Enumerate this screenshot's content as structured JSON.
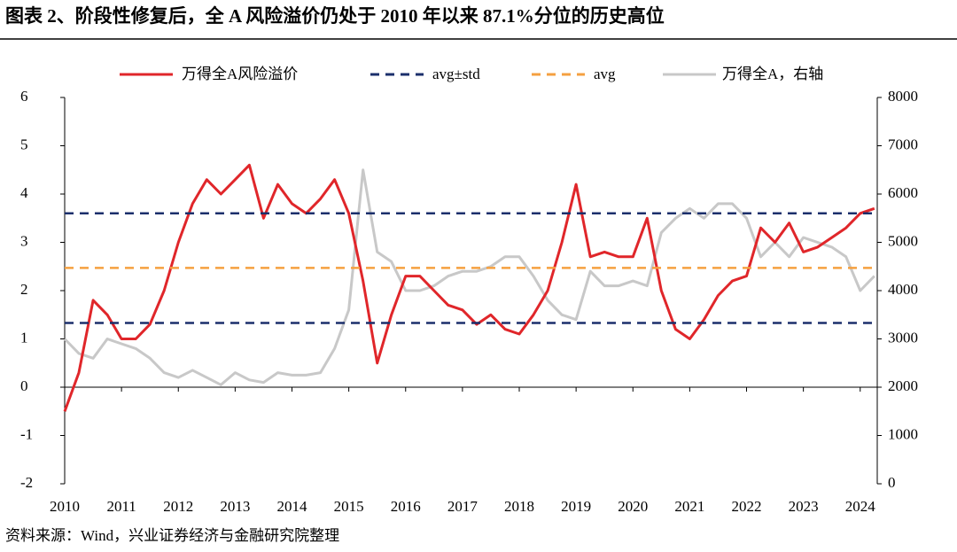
{
  "chart_data": {
    "type": "line",
    "title": "图表 2、阶段性修复后，全 A 风险溢价仍处于 2010 年以来 87.1%分位的历史高位",
    "source": "资料来源：Wind，兴业证券经济与金融研究院整理",
    "legend": "top",
    "x": [
      2010,
      2010.25,
      2010.5,
      2010.75,
      2011,
      2011.25,
      2011.5,
      2011.75,
      2012,
      2012.25,
      2012.5,
      2012.75,
      2013,
      2013.25,
      2013.5,
      2013.75,
      2014,
      2014.25,
      2014.5,
      2014.75,
      2015,
      2015.25,
      2015.5,
      2015.75,
      2016,
      2016.25,
      2016.5,
      2016.75,
      2017,
      2017.25,
      2017.5,
      2017.75,
      2018,
      2018.25,
      2018.5,
      2018.75,
      2019,
      2019.25,
      2019.5,
      2019.75,
      2020,
      2020.25,
      2020.5,
      2020.75,
      2021,
      2021.25,
      2021.5,
      2021.75,
      2022,
      2022.25,
      2022.5,
      2022.75,
      2023,
      2023.25,
      2023.5,
      2023.75,
      2024,
      2024.25
    ],
    "series": [
      {
        "name": "万得全A风险溢价",
        "color": "#e0262a",
        "axis": "y",
        "values": [
          -0.5,
          0.3,
          1.8,
          1.5,
          1.0,
          1.0,
          1.3,
          2.0,
          3.0,
          3.8,
          4.3,
          4.0,
          4.3,
          4.6,
          3.5,
          4.2,
          3.8,
          3.6,
          3.9,
          4.3,
          3.6,
          2.2,
          0.5,
          1.5,
          2.3,
          2.3,
          2.0,
          1.7,
          1.6,
          1.3,
          1.5,
          1.2,
          1.1,
          1.5,
          2.0,
          3.0,
          4.2,
          2.7,
          2.8,
          2.7,
          2.7,
          3.5,
          2.0,
          1.2,
          1.0,
          1.4,
          1.9,
          2.2,
          2.3,
          3.3,
          3.0,
          3.4,
          2.8,
          2.9,
          3.1,
          3.3,
          3.6,
          3.7
        ]
      },
      {
        "name": "万得全A，右轴",
        "color": "#c8c8c8",
        "axis": "y2",
        "values": [
          3000,
          2700,
          2600,
          3000,
          2900,
          2800,
          2600,
          2300,
          2200,
          2350,
          2200,
          2050,
          2300,
          2150,
          2100,
          2300,
          2250,
          2250,
          2300,
          2800,
          3600,
          6500,
          4800,
          4600,
          4000,
          4000,
          4100,
          4300,
          4400,
          4400,
          4500,
          4700,
          4700,
          4300,
          3800,
          3500,
          3400,
          4400,
          4100,
          4100,
          4200,
          4100,
          5200,
          5500,
          5700,
          5500,
          5800,
          5800,
          5500,
          4700,
          5000,
          4700,
          5100,
          5000,
          4900,
          4700,
          4000,
          4300
        ]
      }
    ],
    "hlines": [
      {
        "name": "avg±std",
        "color": "#1b2f6b",
        "values": [
          3.6,
          1.33
        ]
      },
      {
        "name": "avg",
        "color": "#f5a040",
        "values": [
          2.47
        ]
      }
    ],
    "xlim": [
      2010,
      2024.3
    ],
    "xticks": [
      2010,
      2011,
      2012,
      2013,
      2014,
      2015,
      2016,
      2017,
      2018,
      2019,
      2020,
      2021,
      2022,
      2023,
      2024
    ],
    "ylim": [
      -2,
      6
    ],
    "yticks": [
      -2,
      -1,
      0,
      1,
      2,
      3,
      4,
      5,
      6
    ],
    "y2lim": [
      0,
      8000
    ],
    "y2ticks": [
      0,
      1000,
      2000,
      3000,
      4000,
      5000,
      6000,
      7000,
      8000
    ]
  }
}
